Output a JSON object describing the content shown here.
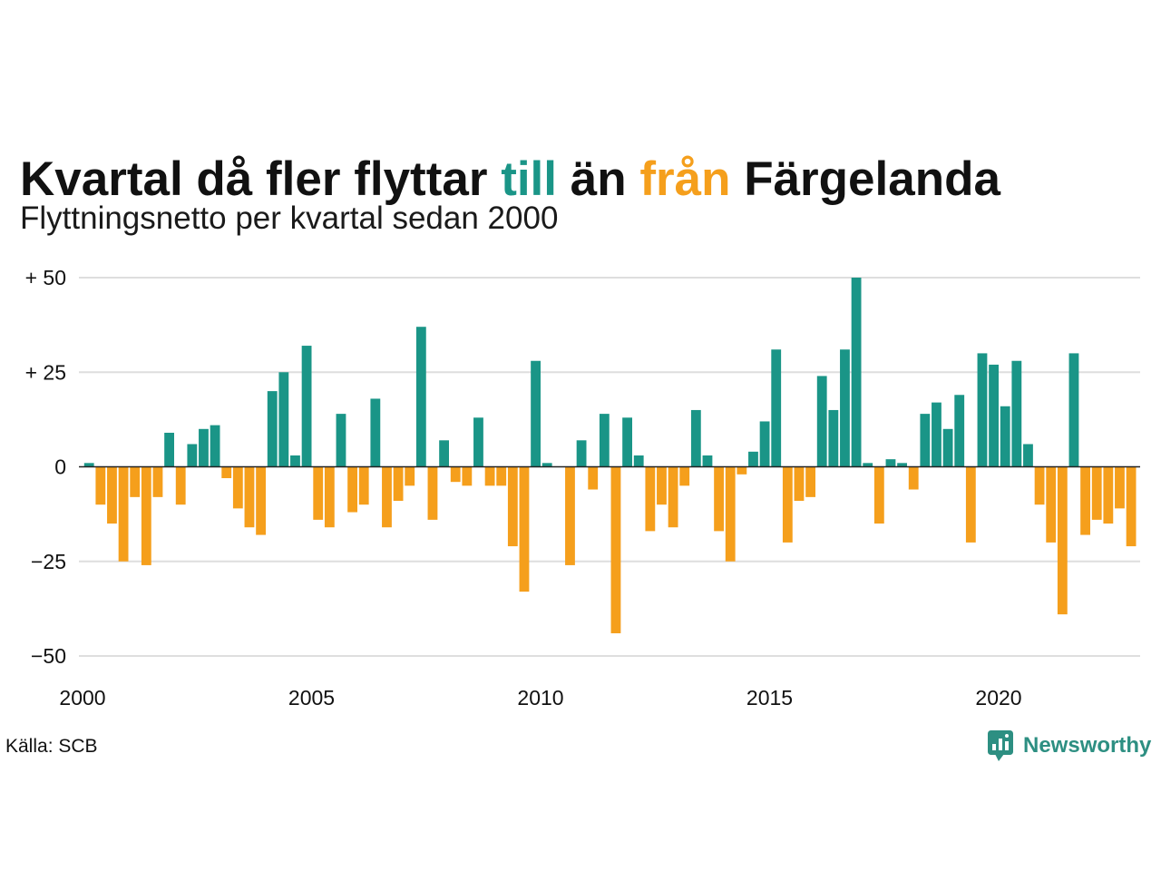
{
  "chart_data": {
    "type": "bar",
    "title": [
      "Kvartal då fler flyttar ",
      "till",
      " än ",
      "från",
      " Färgelanda"
    ],
    "subtitle": "Flyttningsnetto per kvartal sedan 2000",
    "x": [
      2000,
      2000.25,
      2000.5,
      2000.75,
      2001,
      2001.25,
      2001.5,
      2001.75,
      2002,
      2002.25,
      2002.5,
      2002.75,
      2003,
      2003.25,
      2003.5,
      2003.75,
      2004,
      2004.25,
      2004.5,
      2004.75,
      2005,
      2005.25,
      2005.5,
      2005.75,
      2006,
      2006.25,
      2006.5,
      2006.75,
      2007,
      2007.25,
      2007.5,
      2007.75,
      2008,
      2008.25,
      2008.5,
      2008.75,
      2009,
      2009.25,
      2009.5,
      2009.75,
      2010,
      2010.25,
      2010.5,
      2010.75,
      2011,
      2011.25,
      2011.5,
      2011.75,
      2012,
      2012.25,
      2012.5,
      2012.75,
      2013,
      2013.25,
      2013.5,
      2013.75,
      2014,
      2014.25,
      2014.5,
      2014.75,
      2015,
      2015.25,
      2015.5,
      2015.75,
      2016,
      2016.25,
      2016.5,
      2016.75,
      2017,
      2017.25,
      2017.5,
      2017.75,
      2018,
      2018.25,
      2018.5,
      2018.75,
      2019,
      2019.25,
      2019.5,
      2019.75,
      2020,
      2020.25,
      2020.5,
      2020.75,
      2021,
      2021.25,
      2021.5,
      2021.75,
      2022,
      2022.25,
      2022.5,
      2022.75
    ],
    "values": [
      1,
      -10,
      -15,
      -25,
      -8,
      -26,
      -8,
      9,
      -10,
      6,
      10,
      11,
      -3,
      -11,
      -16,
      -18,
      20,
      25,
      3,
      32,
      -14,
      -16,
      14,
      -12,
      -10,
      18,
      -16,
      -9,
      -5,
      37,
      -14,
      7,
      -4,
      -5,
      13,
      -5,
      -5,
      -21,
      -33,
      28,
      1,
      0,
      -26,
      7,
      -6,
      14,
      -44,
      13,
      3,
      -17,
      -10,
      -16,
      -5,
      15,
      3,
      -17,
      -25,
      -2,
      4,
      12,
      31,
      -20,
      -9,
      -8,
      24,
      15,
      31,
      50,
      1,
      -15,
      2,
      1,
      -6,
      14,
      17,
      10,
      19,
      -20,
      30,
      27,
      16,
      28,
      6,
      -10,
      -20,
      -39,
      30,
      -18,
      -14,
      -15,
      -11,
      -21
    ],
    "xticks": [
      {
        "value": 2000,
        "label": "2000"
      },
      {
        "value": 2005,
        "label": "2005"
      },
      {
        "value": 2010,
        "label": "2010"
      },
      {
        "value": 2015,
        "label": "2015"
      },
      {
        "value": 2020,
        "label": "2020"
      }
    ],
    "yticks": [
      {
        "value": 50,
        "label": "+ 50"
      },
      {
        "value": 25,
        "label": "+ 25"
      },
      {
        "value": 0,
        "label": "0"
      },
      {
        "value": -25,
        "label": "−25"
      },
      {
        "value": -50,
        "label": "−50"
      }
    ],
    "xlim": [
      2000,
      2023
    ],
    "ylim": [
      -50,
      50
    ],
    "grid": true,
    "legend": "none"
  },
  "source": "Källa: SCB",
  "logo": {
    "text": "Newsworthy",
    "icon": "newsworthy-logo-icon"
  },
  "colors": {
    "positive": "#1a9587",
    "negative": "#f59f1c",
    "text": "#111111",
    "grid": "#dedede",
    "zero_line": "#222222",
    "logo": "#2d8f82"
  }
}
